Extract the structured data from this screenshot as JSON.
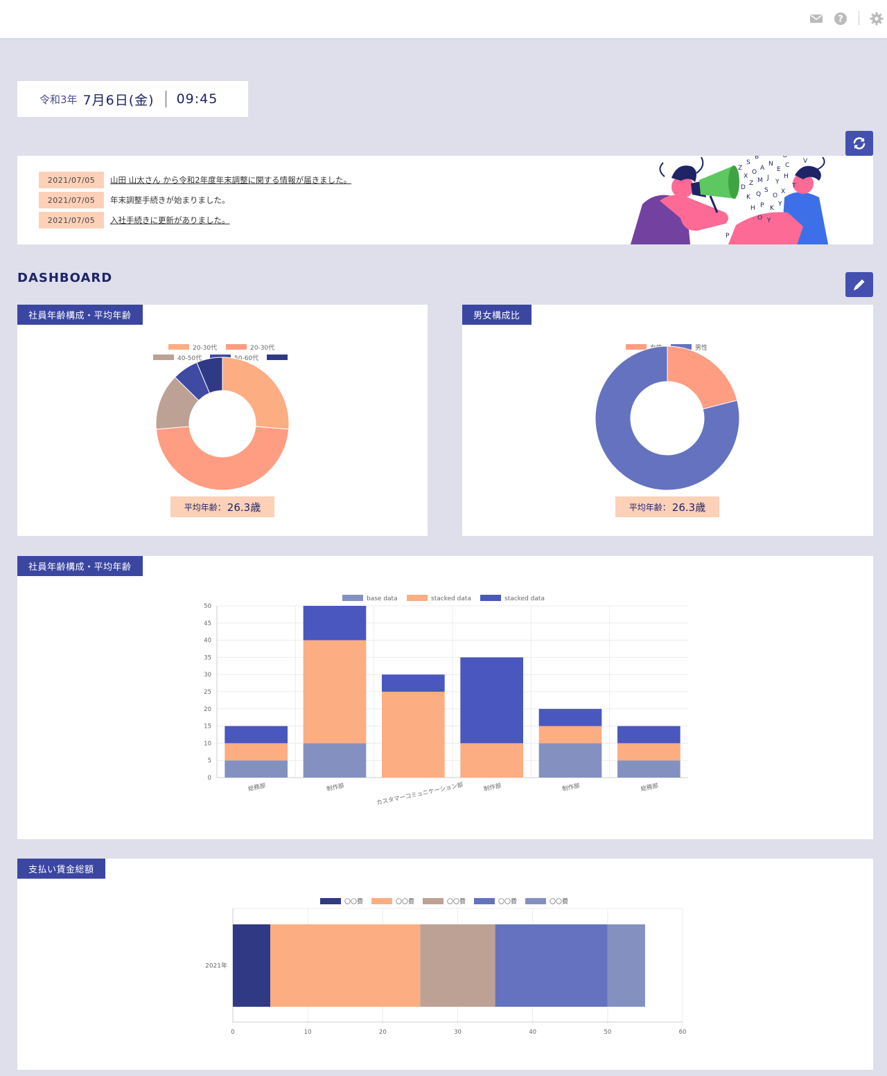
{
  "header": {
    "mail_icon": "mail-icon",
    "help_icon": "help-icon",
    "settings_icon": "gear-icon"
  },
  "datetime": {
    "era": "令和3年",
    "month_day": "7月6日(金)",
    "time": "09:45"
  },
  "refresh_icon": "refresh-icon",
  "edit_icon": "pencil-icon",
  "news": [
    {
      "date": "2021/07/05",
      "text": "山田 山太さん から令和2年度年末調整に関する情報が届きました。",
      "link": true
    },
    {
      "date": "2021/07/05",
      "text": "年末調整手続きが始まりました。",
      "link": false
    },
    {
      "date": "2021/07/05",
      "text": "入社手続きに更新がありました。",
      "link": true
    }
  ],
  "dashboard_title": "DASHBOARD",
  "colors": {
    "navy": "#303984",
    "peach": "#fcad82",
    "salmon": "#fe9d81",
    "taupe": "#bda195",
    "blue": "#4a57be",
    "slate": "#6572c0",
    "lavender": "#8491c0",
    "header_blue": "#3b46a1",
    "badge": "#fdd0b8"
  },
  "age_card": {
    "title": "社員年齢構成・平均年齢",
    "avg_label": "平均年齢：",
    "avg_value": "26.3歳"
  },
  "gender_card": {
    "title": "男女構成比",
    "avg_label": "平均年齢：",
    "avg_value": "26.3歳"
  },
  "dept_card": {
    "title": "社員年齢構成・平均年齢"
  },
  "pay_card": {
    "title": "支払い賃金総額"
  },
  "chart_data": [
    {
      "type": "pie",
      "donut": true,
      "labels": [
        "20-30代",
        "20-30代",
        "40-50代",
        "50-60代",
        ""
      ],
      "values": [
        25,
        45,
        13,
        6,
        6
      ],
      "colors": [
        "#fcad82",
        "#fe9d81",
        "#bda195",
        "#3f4aa3",
        "#303984"
      ],
      "legend": "top"
    },
    {
      "type": "pie",
      "donut": true,
      "labels": [
        "女性",
        "男性"
      ],
      "values": [
        21,
        79
      ],
      "colors": [
        "#fe9d81",
        "#6572c0"
      ],
      "legend": "top"
    },
    {
      "type": "bar",
      "stacked": true,
      "categories": [
        "総務部",
        "制作部",
        "カスタマーコミュニケーション部",
        "制作部",
        "制作部",
        "総務部"
      ],
      "series": [
        {
          "name": "base data",
          "values": [
            5,
            10,
            0,
            0,
            10,
            5
          ],
          "color": "#8491c0"
        },
        {
          "name": "stacked data",
          "values": [
            5,
            30,
            25,
            10,
            5,
            5
          ],
          "color": "#fcad82"
        },
        {
          "name": "stacked data",
          "values": [
            5,
            10,
            5,
            25,
            5,
            5
          ],
          "color": "#4a57be"
        }
      ],
      "ylim": [
        0,
        50
      ],
      "yticks": [
        0,
        5,
        10,
        15,
        20,
        25,
        30,
        35,
        40,
        45,
        50
      ],
      "grid": true,
      "legend": "top"
    },
    {
      "type": "bar",
      "orientation": "horizontal",
      "stacked": true,
      "categories": [
        "2021年"
      ],
      "series": [
        {
          "name": "〇〇費",
          "values": [
            5
          ],
          "color": "#303984"
        },
        {
          "name": "〇〇費",
          "values": [
            20
          ],
          "color": "#fcad82"
        },
        {
          "name": "〇〇費",
          "values": [
            10
          ],
          "color": "#bda195"
        },
        {
          "name": "〇〇費",
          "values": [
            15
          ],
          "color": "#6572c0"
        },
        {
          "name": "〇〇費",
          "values": [
            5
          ],
          "color": "#8491c0"
        }
      ],
      "xlim": [
        0,
        60
      ],
      "xticks": [
        0,
        10,
        20,
        30,
        40,
        50,
        60
      ],
      "grid": true,
      "legend": "top"
    }
  ]
}
